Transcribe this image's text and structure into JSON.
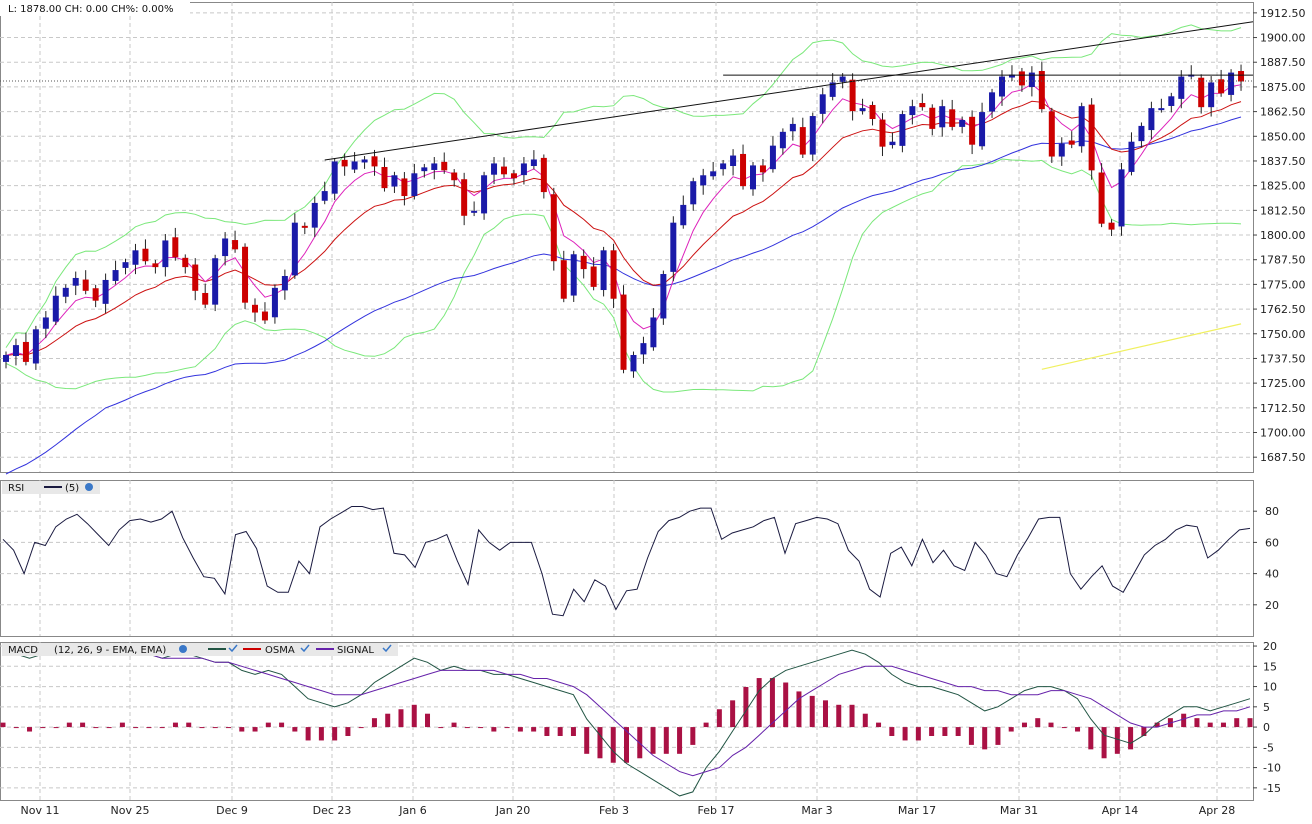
{
  "header": {
    "info": "L: 1878.00 CH: 0.00   CH%: 0.00%"
  },
  "panels": {
    "price": {
      "y_ticks": [
        "1912.50",
        "1900.00",
        "1887.50",
        "1875.00",
        "1862.50",
        "1850.00",
        "1837.50",
        "1825.00",
        "1812.50",
        "1800.00",
        "1787.50",
        "1775.00",
        "1762.50",
        "1750.00",
        "1737.50",
        "1725.00",
        "1712.50",
        "1700.00",
        "1687.50"
      ]
    },
    "rsi": {
      "label": "RSI",
      "param": "(5)",
      "y_ticks": [
        "80",
        "60",
        "40",
        "20"
      ]
    },
    "macd": {
      "label": "MACD",
      "param": "(12, 26, 9 - EMA, EMA)",
      "legend": [
        "OSMA",
        "SIGNAL"
      ],
      "y_ticks": [
        "20",
        "15",
        "10",
        "5",
        "0",
        "-5",
        "-10",
        "-15"
      ]
    }
  },
  "x_labels": [
    "Nov 11",
    "Nov 25",
    "Dec 9",
    "Dec 23",
    "Jan 6",
    "Jan 20",
    "Feb 3",
    "Feb 17",
    "Mar 3",
    "Mar 17",
    "Mar 31",
    "Apr 14",
    "Apr 28"
  ],
  "colors": {
    "up": "#1a1aa8",
    "down": "#cc0000",
    "bollinger": "#7be87b",
    "ma_short": "#dd22bb",
    "ma_mid": "#cc1111",
    "ma_long": "#3333dd",
    "extra_ma": "#f0f060",
    "rsi_line": "#1a1a40",
    "macd_line": "#225544",
    "signal_line": "#6622aa",
    "osma_bar": "#aa1144",
    "grid": "#c8c8c8"
  },
  "chart_data": {
    "type": "candlestick",
    "price_ylim": [
      1680,
      1918
    ],
    "rsi_ylim": [
      0,
      100
    ],
    "macd_ylim": [
      -18,
      21
    ],
    "closes": [
      1739,
      1744,
      1736,
      1752,
      1758,
      1769,
      1773,
      1778,
      1772,
      1767,
      1777,
      1782,
      1786,
      1792,
      1787,
      1784,
      1797,
      1789,
      1784,
      1772,
      1765,
      1788,
      1798,
      1793,
      1766,
      1761,
      1757,
      1773,
      1779,
      1806,
      1804,
      1816,
      1822,
      1837,
      1835,
      1837,
      1838,
      1835,
      1824,
      1830,
      1820,
      1831,
      1834,
      1836,
      1833,
      1828,
      1810,
      1812,
      1830,
      1836,
      1831,
      1829,
      1836,
      1838,
      1822,
      1787,
      1768,
      1790,
      1783,
      1774,
      1792,
      1768,
      1732,
      1739,
      1745,
      1758,
      1780,
      1806,
      1815,
      1827,
      1830,
      1832,
      1836,
      1840,
      1825,
      1835,
      1832,
      1845,
      1852,
      1856,
      1841,
      1860,
      1871,
      1877,
      1880,
      1863,
      1864,
      1859,
      1845,
      1847,
      1861,
      1865,
      1865,
      1854,
      1865,
      1855,
      1858,
      1846,
      1862,
      1872,
      1880,
      1881,
      1876,
      1882,
      1864,
      1840,
      1846,
      1846,
      1865,
      1833,
      1806,
      1803,
      1833,
      1847,
      1855,
      1864,
      1864,
      1870,
      1880,
      1881,
      1865,
      1877,
      1872,
      1882,
      1878
    ],
    "rsi": [
      62,
      55,
      40,
      60,
      58,
      70,
      75,
      78,
      72,
      65,
      58,
      68,
      74,
      75,
      73,
      75,
      80,
      63,
      50,
      38,
      37,
      27,
      65,
      67,
      56,
      32,
      28,
      28,
      48,
      40,
      70,
      75,
      79,
      83,
      83,
      81,
      82,
      53,
      52,
      44,
      60,
      62,
      65,
      48,
      33,
      68,
      60,
      55,
      60,
      60,
      60,
      40,
      14,
      13,
      30,
      22,
      36,
      32,
      17,
      29,
      30,
      50,
      67,
      74,
      76,
      80,
      82,
      82,
      62,
      66,
      68,
      70,
      74,
      76,
      53,
      72,
      74,
      76,
      75,
      72,
      55,
      48,
      30,
      25,
      53,
      57,
      45,
      62,
      47,
      55,
      45,
      42,
      60,
      52,
      40,
      38,
      52,
      63,
      75,
      76,
      76,
      40,
      30,
      38,
      45,
      32,
      28,
      40,
      52,
      58,
      62,
      68,
      71,
      70,
      50,
      55,
      62,
      68,
      69
    ],
    "macd": [
      19,
      18,
      17,
      18,
      18,
      19,
      19,
      18,
      18,
      19,
      18,
      18,
      17,
      18,
      18,
      17,
      16,
      16,
      14,
      13,
      14,
      13,
      10,
      7,
      6,
      5,
      6,
      8,
      11,
      13,
      15,
      17,
      16,
      14,
      15,
      14,
      14,
      13,
      13,
      12,
      11,
      10,
      9,
      8,
      2,
      -2,
      -6,
      -9,
      -11,
      -13,
      -15,
      -17,
      -16,
      -10,
      -6,
      -1,
      4,
      9,
      12,
      14,
      15,
      16,
      17,
      18,
      19,
      18,
      16,
      13,
      11,
      10,
      10,
      9,
      8,
      6,
      4,
      5,
      7,
      9,
      10,
      10,
      9,
      7,
      2,
      -2,
      -3,
      -4,
      -2,
      1,
      3,
      5,
      5,
      4,
      5,
      6,
      7
    ],
    "signal": [
      18,
      18,
      18,
      18,
      18,
      18,
      18,
      18,
      18,
      18,
      18,
      18,
      17,
      17,
      17,
      17,
      16,
      16,
      15,
      14,
      13,
      12,
      11,
      10,
      9,
      8,
      8,
      8,
      9,
      10,
      11,
      12,
      13,
      14,
      14,
      14,
      14,
      14,
      13,
      13,
      12,
      12,
      11,
      10,
      8,
      5,
      2,
      -1,
      -4,
      -7,
      -9,
      -11,
      -12,
      -11,
      -10,
      -7,
      -5,
      -2,
      1,
      4,
      7,
      9,
      11,
      13,
      14,
      15,
      15,
      15,
      14,
      13,
      12,
      11,
      10,
      10,
      9,
      9,
      8,
      8,
      8,
      9,
      9,
      8,
      7,
      5,
      3,
      1,
      0,
      0,
      1,
      2,
      3,
      3,
      4,
      4,
      5
    ],
    "osma": [
      1,
      0,
      -1,
      0,
      0,
      1,
      1,
      0,
      0,
      1,
      0,
      0,
      0,
      1,
      1,
      0,
      0,
      0,
      -1,
      -1,
      1,
      1,
      -1,
      -3,
      -3,
      -3,
      -2,
      0,
      2,
      3,
      4,
      5,
      3,
      0,
      1,
      0,
      0,
      -1,
      0,
      -1,
      -1,
      -2,
      -2,
      -2,
      -6,
      -7,
      -8,
      -8,
      -7,
      -6,
      -6,
      -6,
      -4,
      1,
      4,
      6,
      9,
      11,
      11,
      10,
      8,
      7,
      6,
      5,
      5,
      3,
      1,
      -2,
      -3,
      -3,
      -2,
      -2,
      -2,
      -4,
      -5,
      -4,
      -1,
      1,
      2,
      1,
      0,
      -1,
      -5,
      -7,
      -6,
      -5,
      -2,
      1,
      2,
      3,
      2,
      1,
      1,
      2,
      2
    ],
    "bollinger_upper_anchor": "visual",
    "trendlines": [
      {
        "name": "rising resistance",
        "from": [
          32,
          1838
        ],
        "to": [
          124,
          1908
        ]
      },
      {
        "name": "horizontal resistance",
        "from": [
          72,
          1881
        ],
        "to": [
          124,
          1881
        ]
      }
    ],
    "last_price_line": 1878
  }
}
